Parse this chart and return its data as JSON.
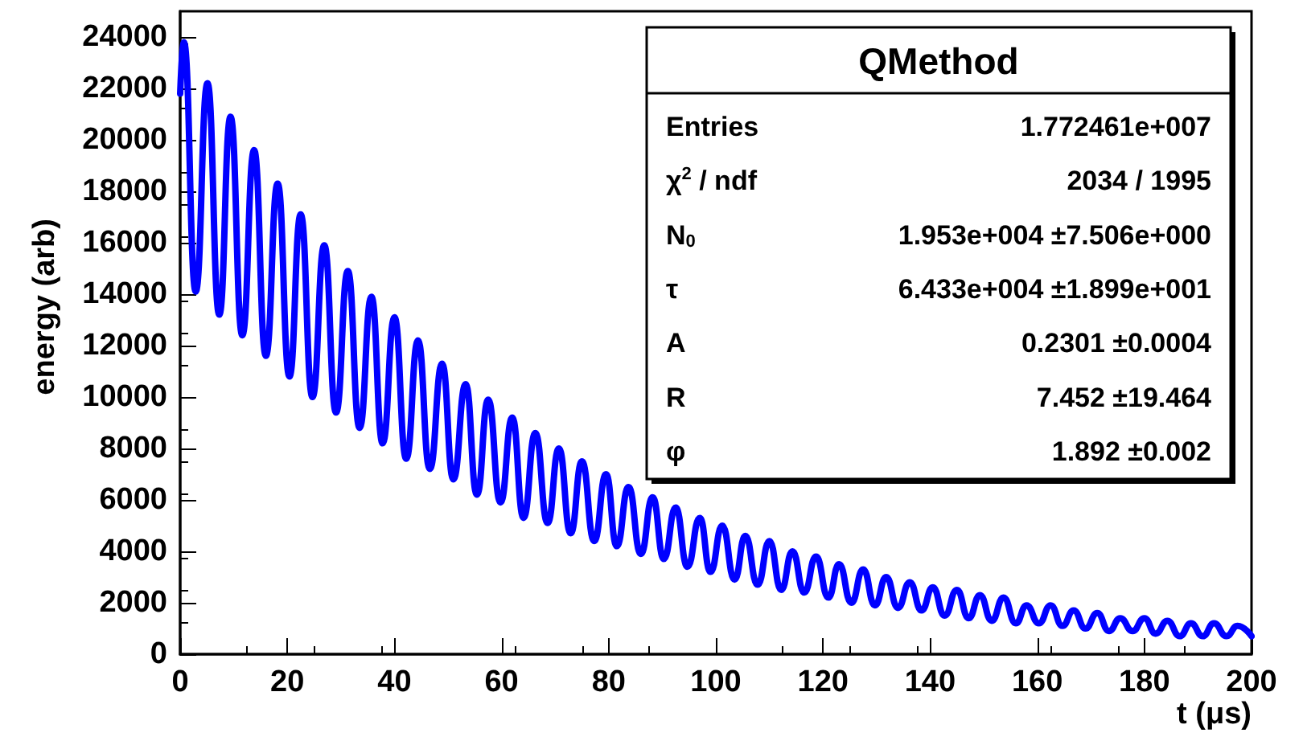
{
  "chart_data": {
    "type": "line",
    "xlabel": "t (μs)",
    "ylabel": "energy (arb)",
    "xlim": [
      0,
      200
    ],
    "xticks": [
      0,
      20,
      40,
      60,
      80,
      100,
      120,
      140,
      160,
      180,
      200
    ],
    "ylim": [
      0,
      25000
    ],
    "yticks": [
      0,
      2000,
      4000,
      6000,
      8000,
      10000,
      12000,
      14000,
      16000,
      18000,
      20000,
      22000,
      24000
    ],
    "grid": false,
    "annotations": [
      "QMethod",
      "Entries",
      "1.772461e+007",
      "χ$^{2}$ / ndf",
      "2034 / 1995",
      "N$_{0}$",
      "1.953e+004 ±7.506e+000",
      "τ",
      "6.433e+004 ±1.899e+001",
      "A",
      "0.2301 ±0.0004",
      "R",
      "7.452 ±19.464",
      "φ",
      "1.892 ±0.002"
    ],
    "series": [
      {
        "color": "#0000ff",
        "x": [
          0,
          0.7,
          2.9,
          5.1,
          7.3,
          9.4,
          11.6,
          13.8,
          16,
          18.2,
          20.4,
          22.5,
          24.7,
          26.9,
          29.1,
          31.3,
          33.5,
          35.7,
          37.8,
          40,
          42.2,
          44.4,
          46.6,
          48.9,
          51,
          53.3,
          55.4,
          57.5,
          59.8,
          62,
          64.1,
          66.3,
          68.6,
          70.7,
          72.9,
          75,
          77.3,
          79.5,
          81.5,
          83.7,
          86,
          88.2,
          90.3,
          92.5,
          94.7,
          97,
          99,
          101.2,
          103.5,
          105.5,
          107.8,
          110,
          112.2,
          114.3,
          116.5,
          118.7,
          121,
          123,
          125.3,
          127.5,
          129.7,
          131.8,
          134,
          136.2,
          138.4,
          140.5,
          142.7,
          145,
          147.2,
          149.3,
          151.5,
          153.7,
          156,
          158,
          160.3,
          162.5,
          164.7,
          166.8,
          169,
          171.2,
          173.4,
          175.5,
          177.8,
          180,
          182.1,
          184.3,
          186.6,
          188.7,
          190.9,
          193,
          195.3,
          197.4,
          200
        ],
        "values": [
          21800,
          23800,
          14100,
          22200,
          13200,
          20900,
          12400,
          19600,
          11600,
          18300,
          10800,
          17100,
          10000,
          15900,
          9400,
          14900,
          8800,
          13900,
          8200,
          13100,
          7600,
          12200,
          7200,
          11300,
          6800,
          10500,
          6200,
          9900,
          5900,
          9200,
          5300,
          8600,
          5100,
          8000,
          4700,
          7500,
          4400,
          7000,
          4200,
          6500,
          3900,
          6100,
          3700,
          5700,
          3400,
          5300,
          3200,
          5000,
          2900,
          4600,
          2700,
          4400,
          2500,
          4000,
          2400,
          3800,
          2200,
          3500,
          2000,
          3300,
          1900,
          3000,
          1800,
          2800,
          1700,
          2600,
          1500,
          2500,
          1400,
          2300,
          1300,
          2200,
          1200,
          1900,
          1200,
          1900,
          1100,
          1700,
          1000,
          1600,
          900,
          1400,
          900,
          1400,
          800,
          1300,
          700,
          1200,
          700,
          1200,
          700,
          1100,
          700
        ]
      }
    ]
  }
}
